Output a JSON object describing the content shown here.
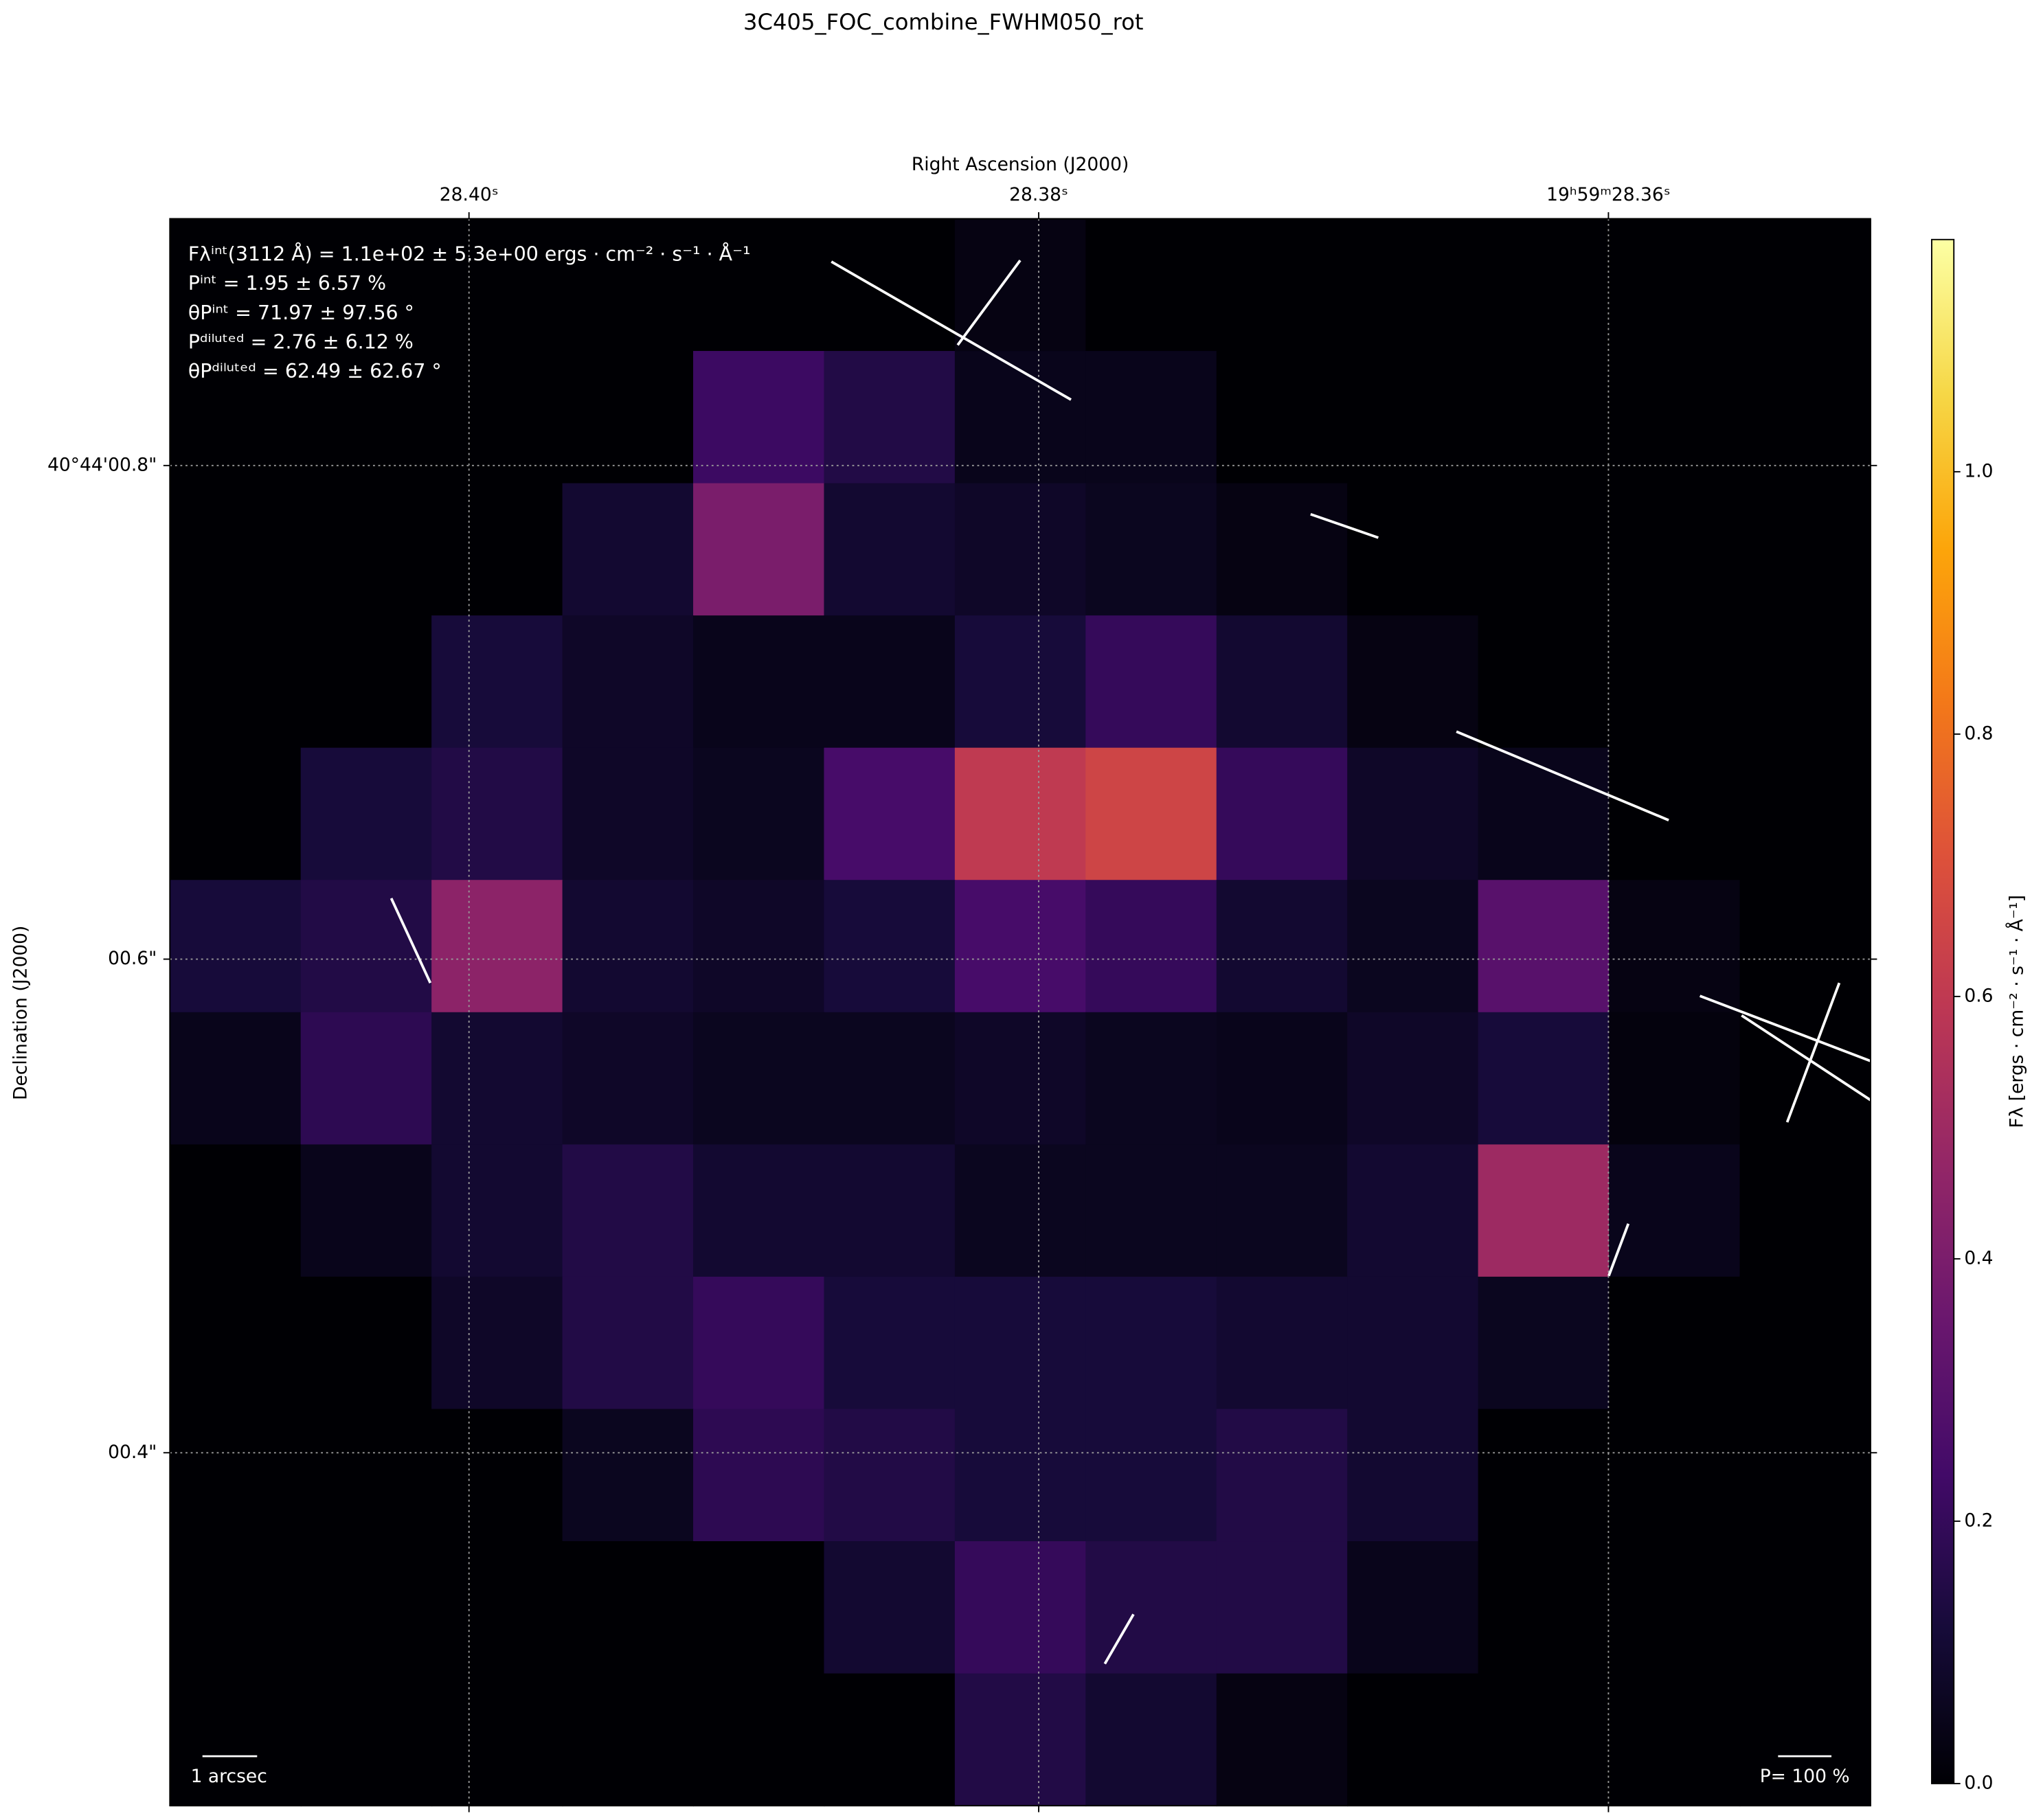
{
  "chart_data": {
    "type": "heatmap",
    "title": "3C405_FOC_combine_FWHM050_rot",
    "x_label": "Right Ascension (J2000)",
    "y_label": "Declination (J2000)",
    "colorbar_label": "Fλ [ergs · cm⁻² · s⁻¹ · Å⁻¹]",
    "colormap": "inferno",
    "grid": true,
    "xlim": [
      28.4105,
      28.3508
    ],
    "xticks": [
      {
        "value": 28.4,
        "label": "28.40ˢ"
      },
      {
        "value": 28.38,
        "label": "28.38ˢ"
      },
      {
        "value": 28.36,
        "label": "19ʰ59ᵐ28.36ˢ"
      }
    ],
    "ylim": [
      0.257,
      0.9
    ],
    "yticks": [
      {
        "value": 0.8,
        "label": "40°44'00.8\""
      },
      {
        "value": 0.6,
        "label": "00.6\""
      },
      {
        "value": 0.4,
        "label": "00.4\""
      }
    ],
    "clim": [
      0,
      1.177
    ],
    "cticks": [
      {
        "value": 0,
        "label": "0.0"
      },
      0.2,
      0.4,
      0.6,
      0.8,
      {
        "value": 1,
        "label": "1.0"
      }
    ],
    "annotations": [
      "Fλⁱⁿᵗ(3112 Å) = 1.1e+02 ± 5.3e+00 ergs · cm⁻² · s⁻¹ · Å⁻¹",
      "Pⁱⁿᵗ = 1.95 ± 6.57 %",
      "θPⁱⁿᵗ = 71.97 ± 97.56 °",
      "Pᵈⁱˡᵘᵗᵉᵈ = 2.76 ± 6.12 %",
      "θPᵈⁱˡᵘᵗᵉᵈ = 62.49 ± 62.67 °"
    ],
    "scale_bar_label": "1 arcsec",
    "vector_scale_label": "P= 100 %",
    "values": [
      [
        0,
        0,
        0,
        0,
        0,
        0,
        0.03,
        0,
        0,
        0,
        0,
        0,
        0
      ],
      [
        0,
        0,
        0,
        0,
        0.22,
        0.15,
        0.05,
        0.05,
        0,
        0,
        0,
        0,
        0
      ],
      [
        0,
        0,
        0,
        0.1,
        0.4,
        0.1,
        0.08,
        0.06,
        0.03,
        0,
        0,
        0,
        0
      ],
      [
        0,
        0,
        0.12,
        0.08,
        0.05,
        0.05,
        0.12,
        0.2,
        0.1,
        0.03,
        0,
        0,
        0
      ],
      [
        0,
        0.12,
        0.15,
        0.08,
        0.06,
        0.25,
        0.6,
        0.65,
        0.2,
        0.08,
        0.05,
        0,
        0
      ],
      [
        0.12,
        0.15,
        0.45,
        0.1,
        0.08,
        0.12,
        0.25,
        0.2,
        0.1,
        0.06,
        0.3,
        0.03,
        0
      ],
      [
        0.05,
        0.18,
        0.1,
        0.08,
        0.06,
        0.06,
        0.08,
        0.06,
        0.05,
        0.08,
        0.12,
        0.02,
        0
      ],
      [
        0,
        0.05,
        0.1,
        0.15,
        0.1,
        0.1,
        0.06,
        0.06,
        0.06,
        0.1,
        0.5,
        0.05,
        0
      ],
      [
        0,
        0,
        0.08,
        0.15,
        0.2,
        0.12,
        0.12,
        0.12,
        0.1,
        0.1,
        0.06,
        0,
        0
      ],
      [
        0,
        0,
        0,
        0.06,
        0.18,
        0.15,
        0.12,
        0.12,
        0.15,
        0.1,
        0,
        0,
        0
      ],
      [
        0,
        0,
        0,
        0,
        0,
        0.1,
        0.2,
        0.15,
        0.15,
        0.05,
        0,
        0,
        0
      ],
      [
        0,
        0,
        0,
        0,
        0,
        0,
        0.15,
        0.1,
        0.03,
        0,
        0,
        0,
        0
      ]
    ]
  }
}
